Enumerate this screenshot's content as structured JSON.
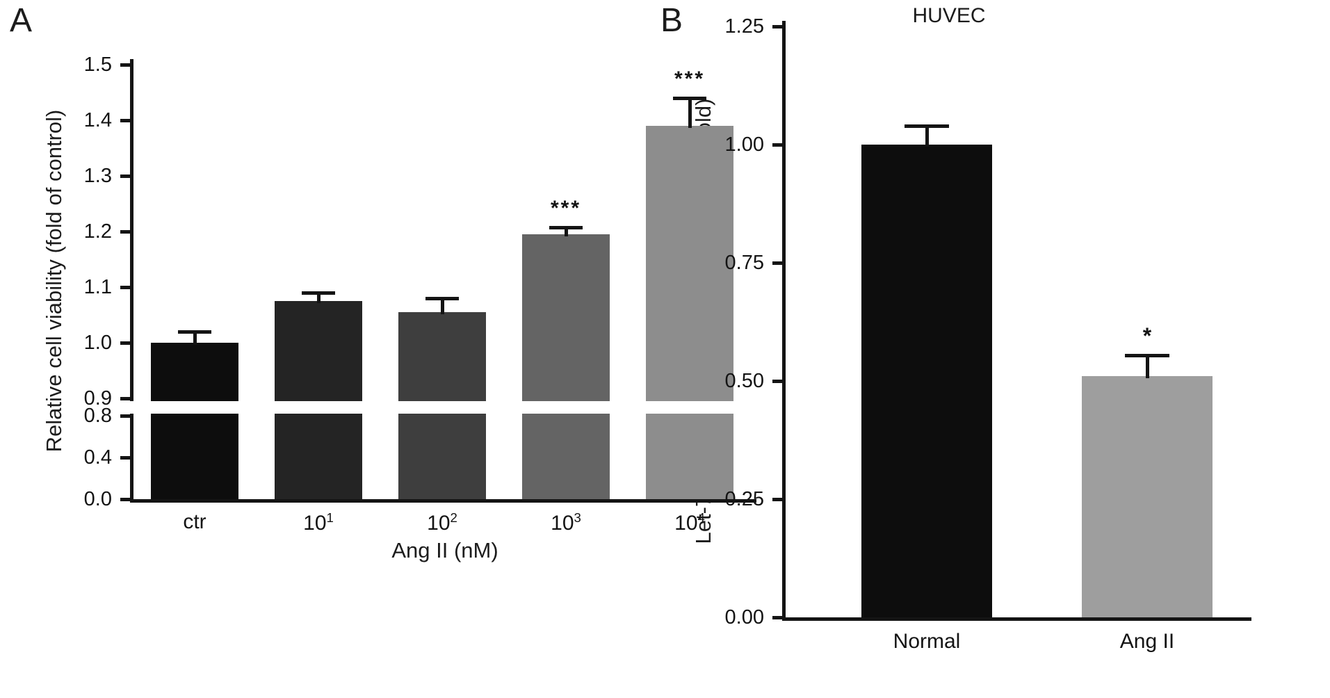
{
  "figure": {
    "background": "#ffffff",
    "panel_a_label": "A",
    "panel_b_label": "B",
    "ink_color": "#141414"
  },
  "chart_data": [
    {
      "type": "bar",
      "panel": "A",
      "title": "",
      "xlabel": "Ang II (nM)",
      "ylabel": "Relative cell viability (fold of control)",
      "categories": [
        {
          "text": "ctr"
        },
        {
          "text": "10",
          "sup": "1"
        },
        {
          "text": "10",
          "sup": "2"
        },
        {
          "text": "10",
          "sup": "3"
        },
        {
          "text": "10",
          "sup": "4"
        }
      ],
      "values": [
        1.0,
        1.075,
        1.055,
        1.195,
        1.39
      ],
      "errors": [
        0.02,
        0.015,
        0.025,
        0.012,
        0.05
      ],
      "significance": [
        "",
        "",
        "",
        "***",
        "***"
      ],
      "bar_colors": [
        "#0d0d0d",
        "#242424",
        "#3e3e3e",
        "#646464",
        "#8d8d8d"
      ],
      "axis_break": true,
      "upper_axis": {
        "min": 0.9,
        "max": 1.5,
        "ticks": [
          "1.5",
          "1.4",
          "1.3",
          "1.2",
          "1.1",
          "1.0",
          "0.9"
        ]
      },
      "lower_axis": {
        "min": 0.0,
        "max": 0.8,
        "ticks": [
          "0.8",
          "0.4",
          "0.0"
        ]
      },
      "legend": "none",
      "grid": false
    },
    {
      "type": "bar",
      "panel": "B",
      "title": "HUVEC",
      "xlabel": "",
      "ylabel": "Let-7g expression level normalized to U6 (fold)",
      "categories": [
        {
          "text": "Normal"
        },
        {
          "text": "Ang II"
        }
      ],
      "values": [
        1.0,
        0.51
      ],
      "errors": [
        0.04,
        0.045
      ],
      "significance": [
        "",
        "*"
      ],
      "bar_colors": [
        "#0d0d0d",
        "#9e9e9e"
      ],
      "axis": {
        "min": 0,
        "max": 1.25,
        "ticks": [
          "1.25",
          "1.00",
          "0.75",
          "0.50",
          "0.25",
          "0.00"
        ]
      },
      "legend": "none",
      "grid": false
    }
  ]
}
